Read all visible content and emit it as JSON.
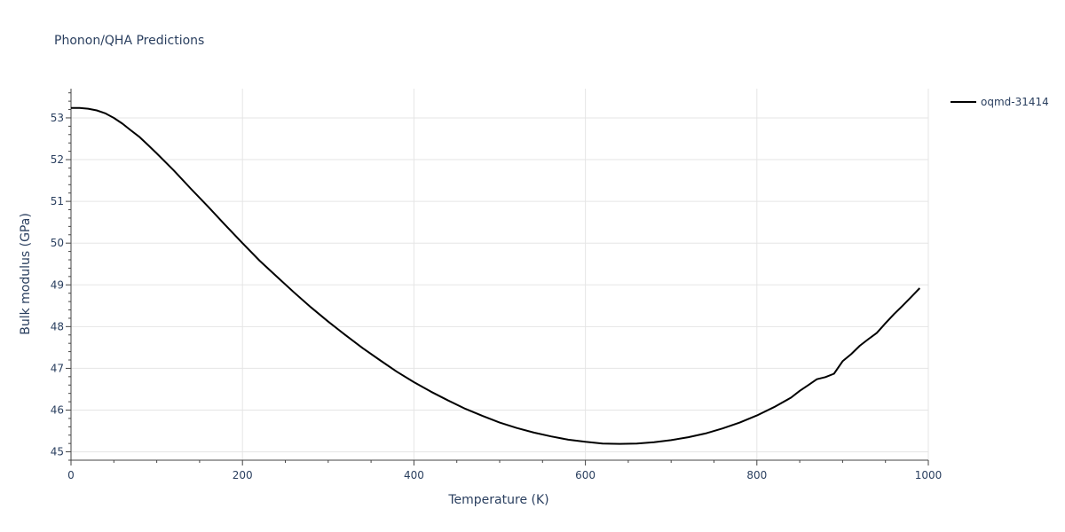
{
  "chart_data": {
    "type": "line",
    "title": "Phonon/QHA Predictions",
    "xlabel": "Temperature (K)",
    "ylabel": "Bulk modulus (GPa)",
    "xlim": [
      0,
      1000
    ],
    "ylim": [
      44.8,
      53.7
    ],
    "x_ticks": [
      0,
      200,
      400,
      600,
      800,
      1000
    ],
    "y_ticks": [
      45,
      46,
      47,
      48,
      49,
      50,
      51,
      52,
      53
    ],
    "grid": true,
    "legend_position": "top-right",
    "series": [
      {
        "name": "oqmd-31414",
        "color": "#000000",
        "x": [
          0,
          10,
          20,
          30,
          40,
          50,
          60,
          70,
          80,
          90,
          100,
          120,
          140,
          160,
          180,
          200,
          220,
          240,
          260,
          280,
          300,
          320,
          340,
          360,
          380,
          400,
          420,
          440,
          460,
          480,
          500,
          520,
          540,
          560,
          580,
          600,
          620,
          640,
          660,
          680,
          700,
          720,
          740,
          760,
          780,
          800,
          820,
          840,
          850,
          860,
          870,
          880,
          890,
          900,
          910,
          920,
          930,
          940,
          950,
          960,
          970,
          980,
          990
        ],
        "y": [
          53.24,
          53.24,
          53.22,
          53.18,
          53.11,
          53.0,
          52.86,
          52.7,
          52.54,
          52.35,
          52.15,
          51.74,
          51.3,
          50.87,
          50.43,
          50.0,
          49.58,
          49.2,
          48.82,
          48.46,
          48.12,
          47.8,
          47.49,
          47.2,
          46.92,
          46.67,
          46.44,
          46.23,
          46.03,
          45.86,
          45.7,
          45.57,
          45.46,
          45.37,
          45.29,
          45.24,
          45.2,
          45.19,
          45.2,
          45.23,
          45.28,
          45.35,
          45.44,
          45.56,
          45.7,
          45.87,
          46.07,
          46.3,
          46.46,
          46.6,
          46.74,
          46.79,
          46.87,
          47.17,
          47.34,
          47.54,
          47.7,
          47.85,
          48.08,
          48.3,
          48.5,
          48.71,
          48.92
        ]
      }
    ]
  }
}
